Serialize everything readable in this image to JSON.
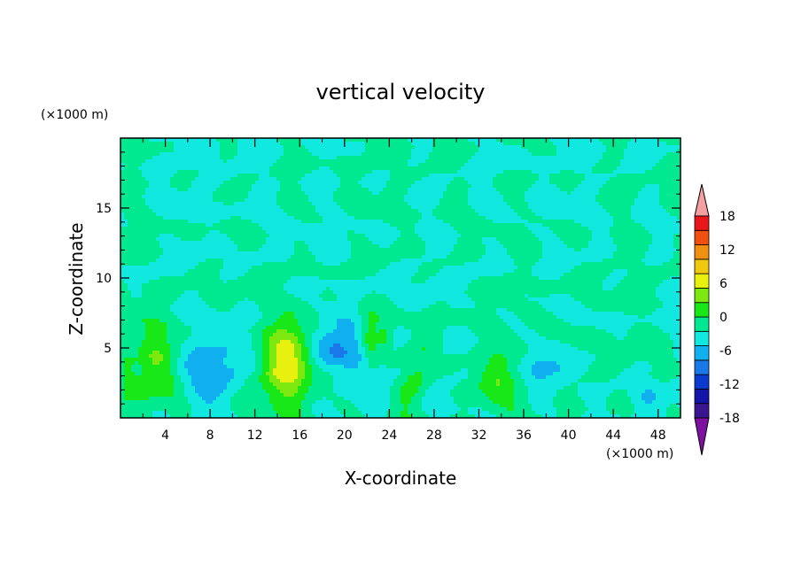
{
  "chart_data": {
    "type": "heatmap",
    "title": "vertical velocity",
    "xlabel": "X-coordinate",
    "ylabel": "Z-coordinate",
    "x_unit": "(×1000 m)",
    "y_unit": "(×1000 m)",
    "xlim": [
      0,
      50
    ],
    "ylim": [
      0,
      20
    ],
    "x_ticks": [
      4,
      8,
      12,
      16,
      20,
      24,
      28,
      32,
      36,
      40,
      44,
      48
    ],
    "y_ticks": [
      5,
      10,
      15
    ],
    "colorbar": {
      "levels": [
        -21,
        -18,
        -15,
        -12,
        -9,
        -6,
        -3,
        0,
        3,
        6,
        9,
        12,
        15,
        18,
        21
      ],
      "labels": [
        18,
        12,
        6,
        0,
        -6,
        -12,
        -18
      ],
      "colors": [
        "#8010a0",
        "#3a1590",
        "#1414a8",
        "#0a3ad0",
        "#1a78e8",
        "#10b0f0",
        "#10e8e0",
        "#00e890",
        "#18e818",
        "#7ce810",
        "#e8f010",
        "#f0c810",
        "#f09010",
        "#f05010",
        "#e81818",
        "#f4a0a0"
      ],
      "extend": "both"
    },
    "features": [
      {
        "x": 3.2,
        "z": 4.2,
        "w": -0.3,
        "peak": 7,
        "sx": 1.1,
        "sz": 1.8
      },
      {
        "x": 2.0,
        "z": 2.2,
        "w": 0,
        "peak": 4,
        "sx": 0.8,
        "sz": 1.0
      },
      {
        "x": 7.0,
        "z": 3.2,
        "w": 0,
        "peak": -5,
        "sx": 1.6,
        "sz": 1.5
      },
      {
        "x": 10.0,
        "z": 4.0,
        "w": 0.3,
        "peak": -3.5,
        "sx": 1.5,
        "sz": 2.0
      },
      {
        "x": 15.0,
        "z": 3.9,
        "w": 0,
        "peak": 11,
        "sx": 1.6,
        "sz": 2.4
      },
      {
        "x": 19.0,
        "z": 5.2,
        "w": 0,
        "peak": -5,
        "sx": 1.3,
        "sz": 1.2
      },
      {
        "x": 20.5,
        "z": 4.2,
        "w": 0,
        "peak": -3.5,
        "sx": 1.8,
        "sz": 1.2
      },
      {
        "x": 22.3,
        "z": 5.6,
        "w": 0,
        "peak": 7,
        "sx": 0.6,
        "sz": 1.3
      },
      {
        "x": 23.6,
        "z": 5.8,
        "w": 0,
        "peak": 4,
        "sx": 0.4,
        "sz": 0.8
      },
      {
        "x": 26.5,
        "z": 3.4,
        "w": 0.4,
        "peak": 4.5,
        "sx": 0.9,
        "sz": 2.4
      },
      {
        "x": 33.5,
        "z": 2.8,
        "w": -0.4,
        "peak": 4.6,
        "sx": 1.6,
        "sz": 1.3
      },
      {
        "x": 38.5,
        "z": 3.2,
        "w": 0,
        "peak": -3.6,
        "sx": 1.4,
        "sz": 1.4
      },
      {
        "x": 47.0,
        "z": 1.4,
        "w": 0,
        "peak": -3.4,
        "sx": 1.0,
        "sz": 1.0
      },
      {
        "x": 0.7,
        "z": 2.6,
        "w": 0,
        "peak": 4,
        "sx": 0.5,
        "sz": 1.0
      }
    ]
  }
}
